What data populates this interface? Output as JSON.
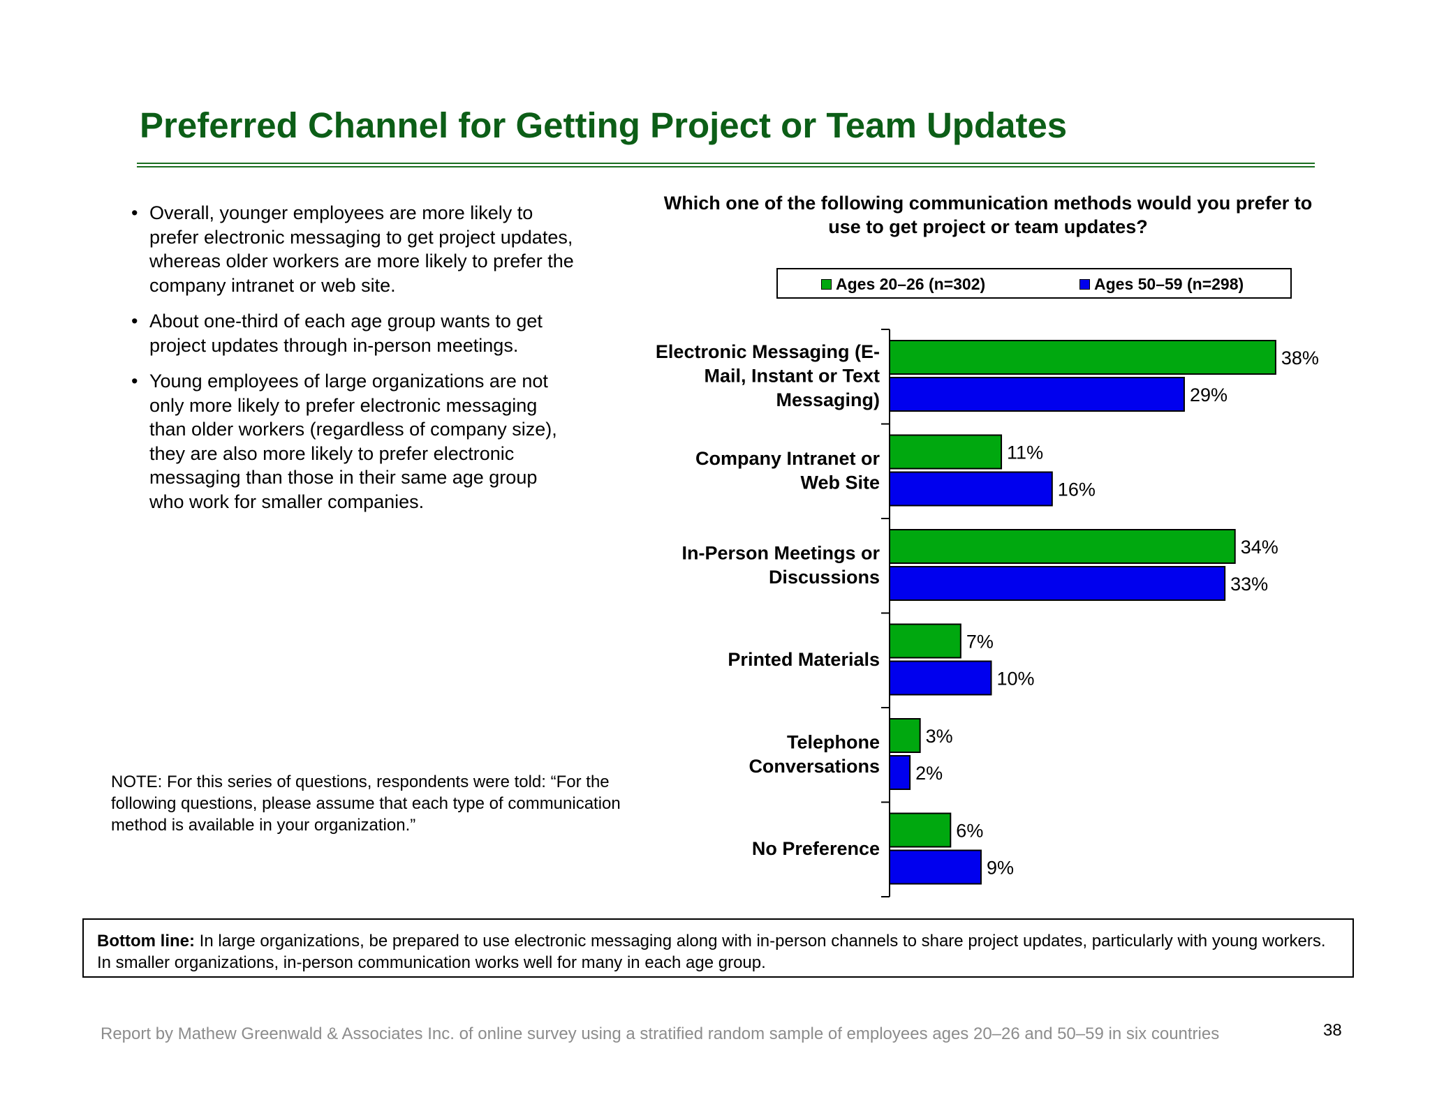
{
  "title": "Preferred Channel for Getting Project or Team Updates",
  "bullets": [
    "Overall, younger employees are more likely to prefer electronic messaging to get project updates, whereas older workers are more likely to prefer the company intranet or web site.",
    "About one-third of each age group wants to get project updates through in-person meetings.",
    "Young employees of large organizations are not only more likely to prefer electronic messaging than older workers (regardless of company size), they are also more likely to prefer electronic messaging than those in their same age group who work for smaller companies."
  ],
  "note": "NOTE: For this series of questions, respondents were told: “For the following questions, please assume that each type of communication method is available in your organization.”",
  "bottom_line": {
    "label": "Bottom line:",
    "text": " In large organizations, be prepared to use electronic messaging along with in-person channels to share project updates, particularly with young workers. In smaller organizations, in-person communication works well for many in each age group."
  },
  "footer": "Report by Mathew Greenwald & Associates Inc. of online survey using a stratified random sample of employees ages 20–26 and 50–59 in six countries",
  "page_number": "38",
  "chart_data": {
    "type": "bar",
    "orientation": "horizontal",
    "title": "Which one of the following communication methods would you prefer to use to get project or team updates?",
    "categories": [
      [
        "Electronic Messaging (E-",
        "Mail, Instant or Text",
        "Messaging)"
      ],
      [
        "Company Intranet or",
        "Web Site"
      ],
      [
        "In-Person Meetings or",
        "Discussions"
      ],
      [
        "Printed Materials"
      ],
      [
        "Telephone",
        "Conversations"
      ],
      [
        "No Preference"
      ]
    ],
    "series": [
      {
        "name": "Ages 20–26 (n=302)",
        "color": "#00a80f",
        "values": [
          38,
          11,
          34,
          7,
          3,
          6
        ]
      },
      {
        "name": "Ages 50–59 (n=298)",
        "color": "#0000ee",
        "values": [
          29,
          16,
          33,
          10,
          2,
          9
        ]
      }
    ],
    "value_suffix": "%",
    "xlim": [
      0,
      40
    ],
    "legend_position": "top",
    "grid": false
  }
}
